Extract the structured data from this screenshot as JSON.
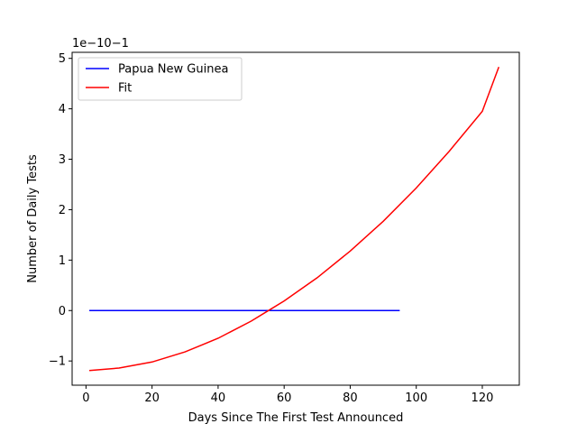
{
  "chart_data": {
    "type": "line",
    "xlabel": "Days Since The First Test Announced",
    "ylabel": "Number of Daily Tests",
    "offset_text": "1e−10−1",
    "xlim": [
      -4.2,
      131.2
    ],
    "ylim": [
      -1.48,
      5.12
    ],
    "xticks": [
      0,
      20,
      40,
      60,
      80,
      100,
      120
    ],
    "yticks": [
      -1,
      0,
      1,
      2,
      3,
      4,
      5
    ],
    "ytick_labels": [
      "−1",
      "0",
      "1",
      "2",
      "3",
      "4",
      "5"
    ],
    "grid": false,
    "legend_position": "upper-left",
    "series": [
      {
        "name": "Papua New Guinea",
        "color": "#0000ff",
        "x": [
          1,
          95
        ],
        "y": [
          0,
          0
        ]
      },
      {
        "name": "Fit",
        "color": "#ff0000",
        "x": [
          1,
          10,
          20,
          30,
          40,
          50,
          55,
          60,
          70,
          80,
          90,
          100,
          110,
          120,
          125
        ],
        "y": [
          -1.19,
          -1.14,
          -1.02,
          -0.82,
          -0.55,
          -0.21,
          -0.01,
          0.19,
          0.65,
          1.18,
          1.77,
          2.43,
          3.16,
          3.95,
          4.83
        ]
      }
    ]
  }
}
